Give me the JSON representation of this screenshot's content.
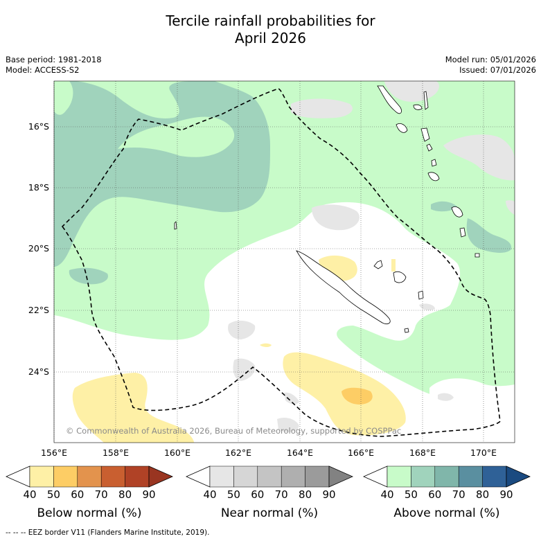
{
  "title_line1": "Tercile rainfall probabilities for",
  "title_line2": "April 2026",
  "base_period": "Base period: 1981-2018",
  "model": "Model: ACCESS-S2",
  "model_run": "Model run: 05/01/2026",
  "issued": "Issued: 07/01/2026",
  "copyright": "© Commonwealth of Australia 2026, Bureau of Meteorology, supported by COSPPac",
  "lat_labels": [
    "16°S",
    "18°S",
    "20°S",
    "22°S",
    "24°S"
  ],
  "lon_labels": [
    "156°E",
    "158°E",
    "160°E",
    "162°E",
    "164°E",
    "166°E",
    "168°E",
    "170°E"
  ],
  "colorbars": [
    {
      "title": "Below normal (%)",
      "ticks": [
        "40",
        "50",
        "60",
        "70",
        "80",
        "90"
      ],
      "colors": [
        "#ffffff",
        "#fef0a6",
        "#fdcd65",
        "#e3934d",
        "#c95f30",
        "#b04226",
        "#993521"
      ]
    },
    {
      "title": "Near normal (%)",
      "ticks": [
        "40",
        "50",
        "60",
        "70",
        "80",
        "90"
      ],
      "colors": [
        "#ffffff",
        "#e6e6e6",
        "#d6d6d6",
        "#c4c4c4",
        "#afafaf",
        "#9b9b9b",
        "#828282"
      ]
    },
    {
      "title": "Above normal (%)",
      "ticks": [
        "40",
        "50",
        "60",
        "70",
        "80",
        "90"
      ],
      "colors": [
        "#ffffff",
        "#c8fbc9",
        "#a0d3bc",
        "#80b6aa",
        "#5a8fa0",
        "#2f6197",
        "#1a4a80"
      ]
    }
  ],
  "footnote": "--  --  -- EEZ border V11 (Flanders Marine Institute, 2019).",
  "colors": {
    "above_50": "#c8fbc9",
    "above_60": "#a0d3bc",
    "above_70": "#80b6aa",
    "below_50": "#fef0a6",
    "below_60": "#fdcd65",
    "near_50": "#e6e6e6",
    "land": "#ffffff"
  }
}
